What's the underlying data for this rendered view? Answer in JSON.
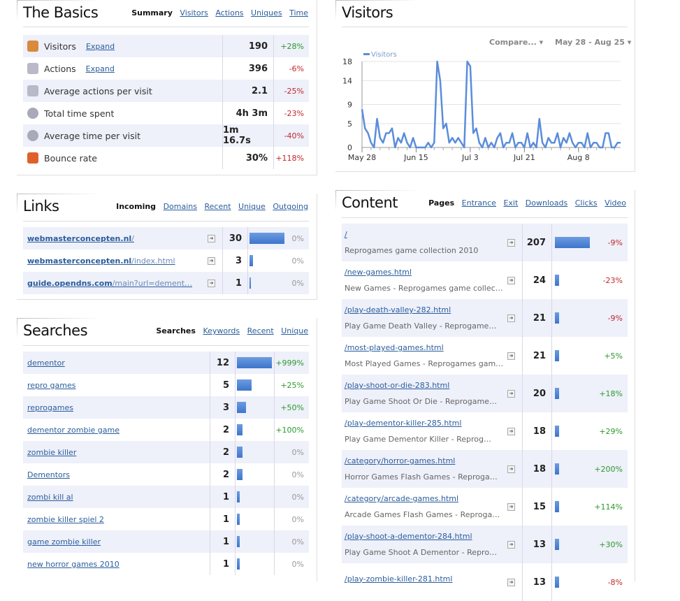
{
  "basics": {
    "title": "The Basics",
    "tabs": [
      "Summary",
      "Visitors",
      "Actions",
      "Uniques",
      "Time"
    ],
    "rows": [
      {
        "icon": "visitors-icon",
        "label": "Visitors",
        "expand": "Expand",
        "value": "190",
        "change": "+28%",
        "trend": "up"
      },
      {
        "icon": "actions-icon",
        "label": "Actions",
        "expand": "Expand",
        "value": "396",
        "change": "-6%",
        "trend": "down"
      },
      {
        "icon": "actions-icon",
        "label": "Average actions per visit",
        "expand": "",
        "value": "2.1",
        "change": "-25%",
        "trend": "down"
      },
      {
        "icon": "clock-icon",
        "label": "Total time spent",
        "expand": "",
        "value": "4h 3m",
        "change": "-23%",
        "trend": "down"
      },
      {
        "icon": "clock-icon",
        "label": "Average time per visit",
        "expand": "",
        "value": "1m 16.7s",
        "change": "-40%",
        "trend": "down"
      },
      {
        "icon": "bounce-icon",
        "label": "Bounce rate",
        "expand": "",
        "value": "30%",
        "change": "+118%",
        "trend": "down"
      }
    ]
  },
  "visitors": {
    "title": "Visitors",
    "compare_label": "Compare...",
    "date_range": "May 28 - Aug 25",
    "chart_data": {
      "type": "line",
      "title": "",
      "series": [
        {
          "name": "Visitors",
          "values": [
            8,
            4,
            3,
            1,
            0,
            6,
            2,
            1,
            3,
            3,
            4,
            0,
            2,
            1,
            3,
            1,
            0,
            2,
            0,
            0,
            0,
            0,
            1,
            0,
            1,
            18,
            14,
            4,
            5,
            1,
            2,
            1,
            2,
            1,
            0,
            18,
            17,
            3,
            4,
            1,
            0,
            2,
            0,
            1,
            0,
            2,
            3,
            0,
            1,
            1,
            3,
            0,
            1,
            1,
            0,
            3,
            0,
            1,
            0,
            6,
            1,
            0,
            2,
            1,
            1,
            3,
            0,
            2,
            1,
            3,
            1,
            0,
            1,
            1,
            0,
            3,
            0,
            1,
            1,
            0,
            0,
            3,
            3,
            0,
            0,
            1,
            1
          ]
        }
      ],
      "x_tick_labels": [
        "May 28",
        "Jun 15",
        "Jul 3",
        "Jul 21",
        "Aug 8"
      ],
      "y_ticks": [
        0,
        5,
        9,
        14,
        18
      ],
      "ylim": [
        0,
        18
      ],
      "grid": true,
      "legend": "top-left",
      "color": "#5a8ddb"
    }
  },
  "links": {
    "title": "Links",
    "tabs": [
      "Incoming",
      "Domains",
      "Recent",
      "Unique",
      "Outgoing"
    ],
    "rows": [
      {
        "domain": "webmasterconcepten.nl",
        "path": "/",
        "count": "30",
        "ratio": 1.0,
        "change": "0%"
      },
      {
        "domain": "webmasterconcepten.nl",
        "path": "/index.html",
        "count": "3",
        "ratio": 0.1,
        "change": "0%"
      },
      {
        "domain": "guide.opendns.com",
        "path": "/main?url=dement…",
        "count": "1",
        "ratio": 0.033,
        "change": "0%"
      }
    ]
  },
  "searches": {
    "title": "Searches",
    "tabs": [
      "Searches",
      "Keywords",
      "Recent",
      "Unique"
    ],
    "rows": [
      {
        "term": "dementor",
        "count": "12",
        "ratio": 1.0,
        "change": "+999%",
        "trend": "up"
      },
      {
        "term": "repro games",
        "count": "5",
        "ratio": 0.417,
        "change": "+25%",
        "trend": "up"
      },
      {
        "term": "reprogames",
        "count": "3",
        "ratio": 0.25,
        "change": "+50%",
        "trend": "up"
      },
      {
        "term": "dementor zombie game",
        "count": "2",
        "ratio": 0.167,
        "change": "+100%",
        "trend": "up"
      },
      {
        "term": "zombie killer",
        "count": "2",
        "ratio": 0.167,
        "change": "0%",
        "trend": "zero"
      },
      {
        "term": "Dementors",
        "count": "2",
        "ratio": 0.167,
        "change": "0%",
        "trend": "zero"
      },
      {
        "term": "zombi kill al",
        "count": "1",
        "ratio": 0.083,
        "change": "0%",
        "trend": "zero"
      },
      {
        "term": "zombie killer spiel 2",
        "count": "1",
        "ratio": 0.083,
        "change": "0%",
        "trend": "zero"
      },
      {
        "term": "game zombie killer",
        "count": "1",
        "ratio": 0.083,
        "change": "0%",
        "trend": "zero"
      },
      {
        "term": "new horror games 2010",
        "count": "1",
        "ratio": 0.083,
        "change": "0%",
        "trend": "zero"
      }
    ]
  },
  "content": {
    "title": "Content",
    "tabs": [
      "Pages",
      "Entrance",
      "Exit",
      "Downloads",
      "Clicks",
      "Video"
    ],
    "rows": [
      {
        "url": "/",
        "page_title": "Reprogames game collection 2010",
        "count": "207",
        "ratio": 1.0,
        "change": "-9%",
        "trend": "down"
      },
      {
        "url": "/new-games.html",
        "page_title": "New Games - Reprogames game collec…",
        "count": "24",
        "ratio": 0.116,
        "change": "-23%",
        "trend": "down"
      },
      {
        "url": "/play-death-valley-282.html",
        "page_title": "Play Game Death Valley - Reprogame…",
        "count": "21",
        "ratio": 0.101,
        "change": "-9%",
        "trend": "down"
      },
      {
        "url": "/most-played-games.html",
        "page_title": "Most Played Games - Reprogames gam…",
        "count": "21",
        "ratio": 0.101,
        "change": "+5%",
        "trend": "up"
      },
      {
        "url": "/play-shoot-or-die-283.html",
        "page_title": "Play Game Shoot Or Die - Reprogame…",
        "count": "20",
        "ratio": 0.097,
        "change": "+18%",
        "trend": "up"
      },
      {
        "url": "/play-dementor-killer-285.html",
        "page_title": "Play Game Dementor Killer - Reprog…",
        "count": "18",
        "ratio": 0.087,
        "change": "+29%",
        "trend": "up"
      },
      {
        "url": "/category/horror-games.html",
        "page_title": "Horror Games Flash Games - Reproga…",
        "count": "18",
        "ratio": 0.087,
        "change": "+200%",
        "trend": "up"
      },
      {
        "url": "/category/arcade-games.html",
        "page_title": "Arcade Games Flash Games - Reproga…",
        "count": "15",
        "ratio": 0.072,
        "change": "+114%",
        "trend": "up"
      },
      {
        "url": "/play-shoot-a-dementor-284.html",
        "page_title": "Play Game Shoot A Dementor - Repro…",
        "count": "13",
        "ratio": 0.063,
        "change": "+30%",
        "trend": "up"
      },
      {
        "url": "/play-zombie-killer-281.html",
        "page_title": "",
        "count": "13",
        "ratio": 0.063,
        "change": "-8%",
        "trend": "down"
      }
    ]
  }
}
